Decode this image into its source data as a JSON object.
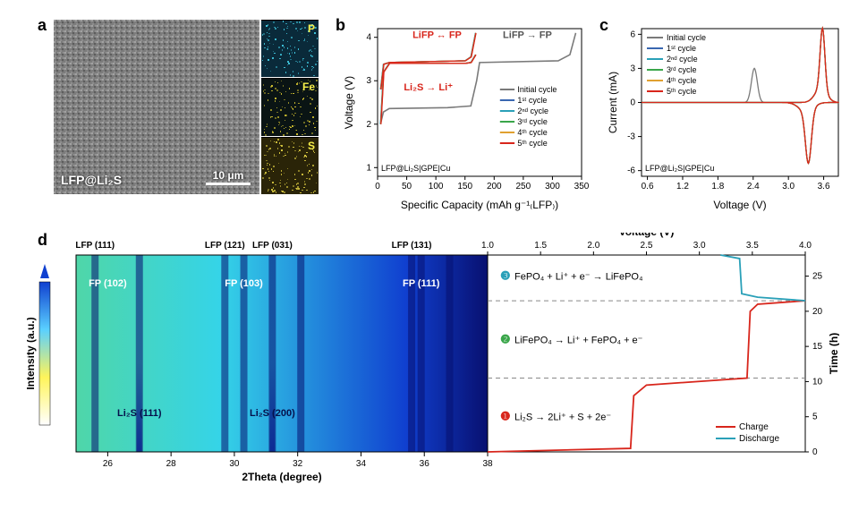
{
  "panel_a": {
    "label": "a",
    "overlay_text": "LFP@Li₂S",
    "scalebar_text": "10 μm",
    "element_maps": [
      "P",
      "Fe",
      "S"
    ],
    "map_label_colors": [
      "#f7ef4a",
      "#f7ef4a",
      "#f7ef4a"
    ],
    "map_bg_dominant": [
      "#0a2a3a",
      "#0a1414",
      "#2a2408"
    ]
  },
  "panel_b": {
    "label": "b",
    "cell_text": "LFP@Li₂S|GPE|Cu",
    "annotations": {
      "top_left": "LiFP ↔ FP",
      "top_right": "LiFP → FP",
      "mid_red": "Li₂S → Li⁺"
    },
    "annotation_colors": {
      "top_left": "#d8261c",
      "top_right": "#555555",
      "mid_red": "#d8261c"
    },
    "x_label": "Specific Capacity (mAh g⁻¹₍LFP₎)",
    "y_label": "Voltage (V)",
    "x_ticks": [
      0,
      50,
      100,
      150,
      200,
      250,
      300,
      350
    ],
    "y_ticks": [
      1,
      2,
      3,
      4
    ],
    "xlim": [
      0,
      350
    ],
    "ylim": [
      0.8,
      4.2
    ],
    "legend": [
      {
        "label": "Initial cycle",
        "color": "#7a7a7a"
      },
      {
        "label": "1ˢᵗ cycle",
        "color": "#3a67b0"
      },
      {
        "label": "2ⁿᵈ cycle",
        "color": "#2aa0b8"
      },
      {
        "label": "3ʳᵈ cycle",
        "color": "#3aa64a"
      },
      {
        "label": "4ᵗʰ cycle",
        "color": "#e0a030"
      },
      {
        "label": "5ᵗʰ cycle",
        "color": "#d8261c"
      }
    ],
    "series": {
      "initial_charge": [
        [
          5,
          2.0
        ],
        [
          10,
          2.28
        ],
        [
          20,
          2.36
        ],
        [
          120,
          2.38
        ],
        [
          160,
          2.42
        ],
        [
          170,
          3.0
        ],
        [
          175,
          3.42
        ],
        [
          310,
          3.46
        ],
        [
          330,
          3.6
        ],
        [
          340,
          4.1
        ]
      ],
      "rep_charge": [
        [
          5,
          2.8
        ],
        [
          10,
          3.38
        ],
        [
          20,
          3.42
        ],
        [
          150,
          3.46
        ],
        [
          160,
          3.55
        ],
        [
          168,
          4.1
        ]
      ],
      "rep_discharge": [
        [
          168,
          3.6
        ],
        [
          160,
          3.42
        ],
        [
          150,
          3.4
        ],
        [
          20,
          3.4
        ],
        [
          10,
          3.2
        ],
        [
          5,
          2.0
        ]
      ]
    },
    "background": "#ffffff",
    "axis_color": "#000000"
  },
  "panel_c": {
    "label": "c",
    "cell_text": "LFP@Li₂S|GPE|Cu",
    "x_label": "Voltage (V)",
    "y_label": "Current (mA)",
    "x_ticks": [
      0.6,
      1.2,
      1.8,
      2.4,
      3.0,
      3.6
    ],
    "y_ticks": [
      -6,
      -3,
      0,
      3,
      6
    ],
    "xlim": [
      0.5,
      3.85
    ],
    "ylim": [
      -6.5,
      6.5
    ],
    "legend": [
      {
        "label": "Initial cycle",
        "color": "#7a7a7a"
      },
      {
        "label": "1ˢᵗ cycle",
        "color": "#3a67b0"
      },
      {
        "label": "2ⁿᵈ cycle",
        "color": "#2aa0b8"
      },
      {
        "label": "3ʳᵈ cycle",
        "color": "#3aa64a"
      },
      {
        "label": "4ᵗʰ cycle",
        "color": "#e0a030"
      },
      {
        "label": "5ᵗʰ cycle",
        "color": "#d8261c"
      }
    ],
    "background": "#ffffff",
    "axis_color": "#000000"
  },
  "panel_d": {
    "label": "d",
    "x_label": "2Theta (degree)",
    "x_ticks": [
      26,
      28,
      30,
      32,
      34,
      36,
      38
    ],
    "xlim": [
      25,
      38
    ],
    "intensity_label": "Intensity (a.u.)",
    "top_labels": [
      {
        "text": "LFP (111)",
        "x": 25.6
      },
      {
        "text": "LFP (121)",
        "x": 29.7
      },
      {
        "text": "LFP (031)",
        "x": 31.2
      },
      {
        "text": "LFP (131)",
        "x": 35.6
      }
    ],
    "fp_labels": [
      {
        "text": "FP (102)",
        "x": 26.0
      },
      {
        "text": "FP (103)",
        "x": 30.3
      },
      {
        "text": "FP (111)",
        "x": 35.9
      }
    ],
    "li2s_labels": [
      {
        "text": "Li₂S (111)",
        "x": 27.0
      },
      {
        "text": "Li₂S (200)",
        "x": 31.2
      }
    ],
    "heatmap_colors": {
      "low": "#4fd6a8",
      "mid": "#35d4e8",
      "high": "#1040d0",
      "max": "#081070"
    },
    "right": {
      "voltage_label": "Voltage (V)",
      "voltage_ticks": [
        1.0,
        1.5,
        2.0,
        2.5,
        3.0,
        3.5,
        4.0
      ],
      "time_label": "Time (h)",
      "time_ticks": [
        0,
        5,
        10,
        15,
        20,
        25
      ],
      "reactions": [
        {
          "n": "❶",
          "color": "#d8261c",
          "text": "Li₂S → 2Li⁺ + S + 2e⁻"
        },
        {
          "n": "❷",
          "color": "#3aa64a",
          "text": "LiFePO₄ → Li⁺ + FePO₄ + e⁻"
        },
        {
          "n": "❸",
          "color": "#2aa0b8",
          "text": "FePO₄ + Li⁺ + e⁻ → LiFePO₄"
        }
      ],
      "legend": [
        {
          "label": "Charge",
          "color": "#d8261c"
        },
        {
          "label": "Discharge",
          "color": "#2aa0b8"
        }
      ],
      "dash_color": "#888888"
    },
    "colorbar_colors": [
      "#ffffff",
      "#fff45a",
      "#5ad0ff",
      "#1040d0"
    ]
  }
}
